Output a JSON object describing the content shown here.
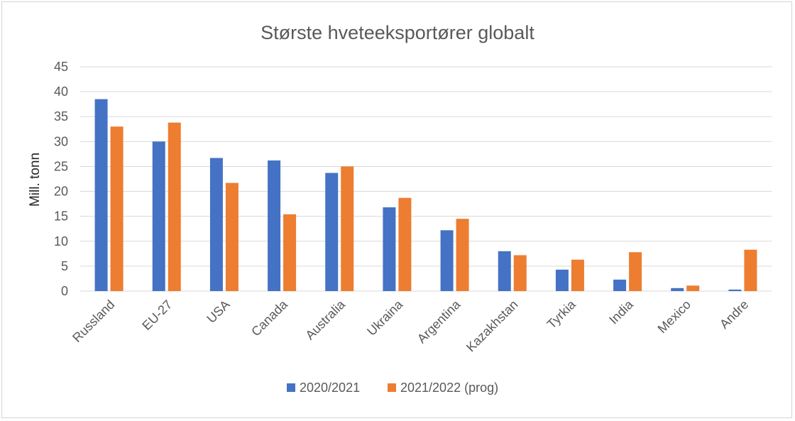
{
  "chart_data": {
    "type": "bar",
    "title": "Største hveteeksportører globalt",
    "xlabel": "",
    "ylabel": "Mill. tonn",
    "ylim": [
      0,
      45
    ],
    "yticks": [
      0,
      5,
      10,
      15,
      20,
      25,
      30,
      35,
      40,
      45
    ],
    "grid": true,
    "legend_position": "bottom",
    "categories": [
      "Russland",
      "EU-27",
      "USA",
      "Canada",
      "Australia",
      "Ukraina",
      "Argentina",
      "Kazakhstan",
      "Tyrkia",
      "India",
      "Mexico",
      "Andre"
    ],
    "series": [
      {
        "name": "2020/2021",
        "color": "#4472c4",
        "values": [
          38.5,
          30.0,
          26.7,
          26.2,
          23.7,
          16.8,
          12.2,
          8.0,
          4.3,
          2.3,
          0.6,
          0.3
        ]
      },
      {
        "name": "2021/2022 (prog)",
        "color": "#ed7d31",
        "values": [
          33.0,
          33.8,
          21.7,
          15.4,
          25.0,
          18.7,
          14.5,
          7.2,
          6.3,
          7.8,
          1.1,
          8.3
        ]
      }
    ]
  }
}
